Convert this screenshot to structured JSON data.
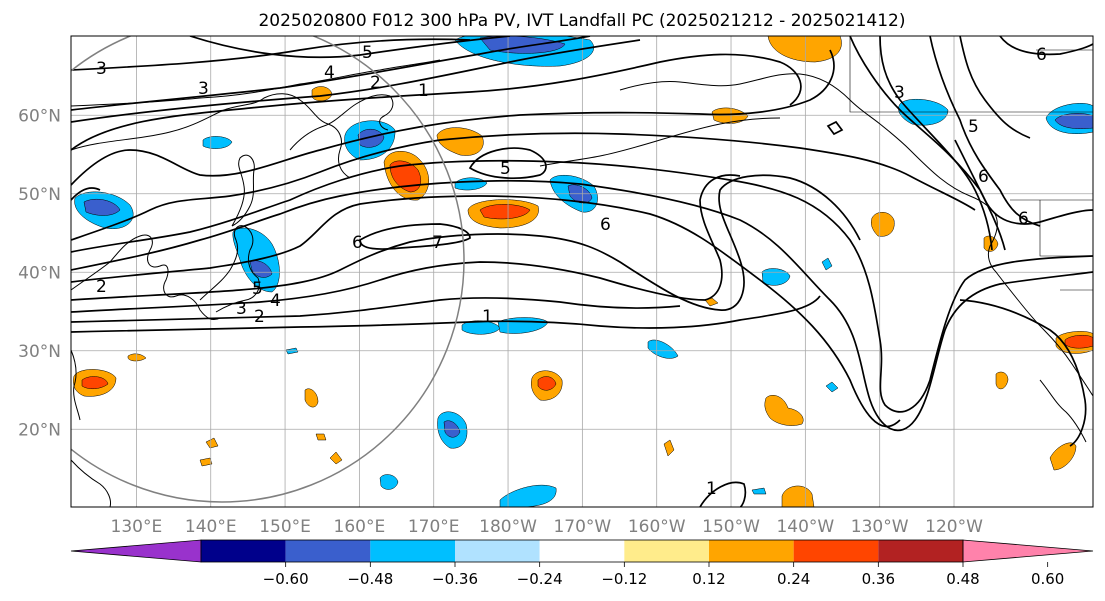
{
  "title": "2025020800 F012 300 hPa PV, IVT Landfall PC (2025021212 - 2025021412)",
  "lat_ticks": [
    {
      "value": 20,
      "label": "20°N"
    },
    {
      "value": 30,
      "label": "30°N"
    },
    {
      "value": 40,
      "label": "40°N"
    },
    {
      "value": 50,
      "label": "50°N"
    },
    {
      "value": 60,
      "label": "60°N"
    }
  ],
  "lon_ticks": [
    {
      "value": 130,
      "label": "130°E"
    },
    {
      "value": 140,
      "label": "140°E"
    },
    {
      "value": 150,
      "label": "150°E"
    },
    {
      "value": 160,
      "label": "160°E"
    },
    {
      "value": 170,
      "label": "170°E"
    },
    {
      "value": 180,
      "label": "180°W"
    },
    {
      "value": 190,
      "label": "170°W"
    },
    {
      "value": 200,
      "label": "160°W"
    },
    {
      "value": 210,
      "label": "150°W"
    },
    {
      "value": 220,
      "label": "140°W"
    },
    {
      "value": 230,
      "label": "130°W"
    },
    {
      "value": 240,
      "label": "120°W"
    }
  ],
  "colorbar": {
    "bins": [
      "#9932cc",
      "#00008b",
      "#3a5fcd",
      "#00bfff",
      "#b0e2ff",
      "#ffffff",
      "#ffec8b",
      "#ffa500",
      "#ff4500",
      "#b22222",
      "#ff82ab"
    ],
    "tick_labels": [
      "−0.60",
      "−0.48",
      "−0.36",
      "−0.24",
      "−0.12",
      "0.12",
      "0.24",
      "0.36",
      "0.48",
      "0.60"
    ]
  },
  "contour_labels": [
    "3",
    "5",
    "4",
    "2",
    "1",
    "3",
    "5",
    "6",
    "7",
    "6",
    "2",
    "5",
    "4",
    "3",
    "2",
    "1",
    "3",
    "5",
    "6",
    "6",
    "6",
    "1"
  ]
}
